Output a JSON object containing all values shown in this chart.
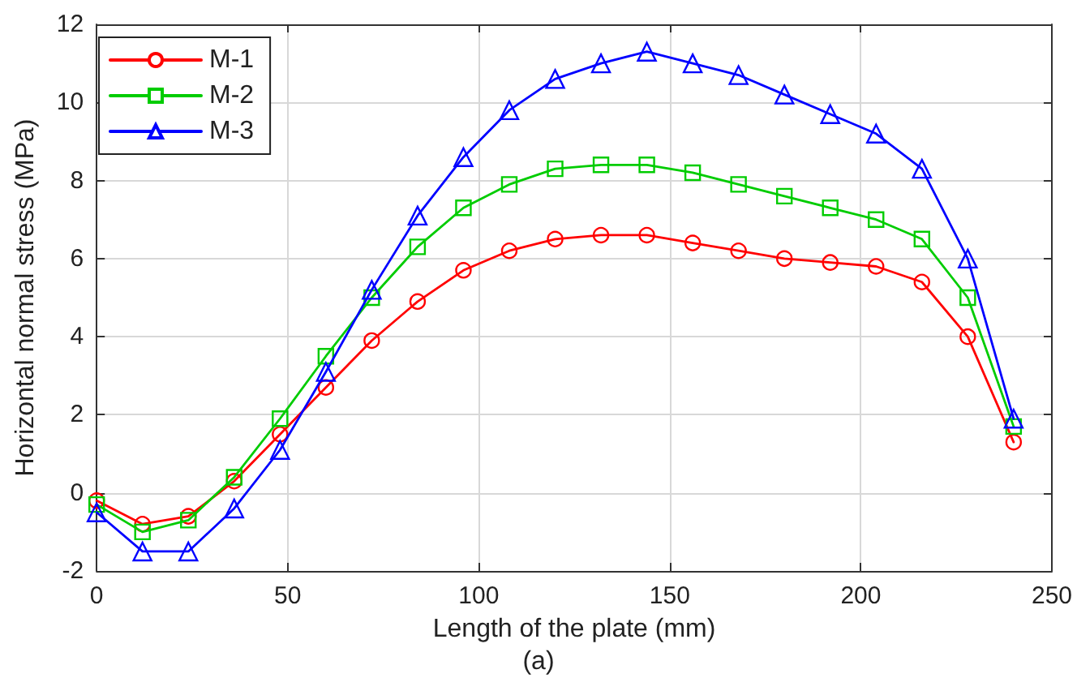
{
  "chart_data": {
    "type": "line",
    "xlabel": "Length of the plate (mm)",
    "ylabel": "Horizontal normal stress (MPa)",
    "x": [
      0,
      12,
      24,
      36,
      48,
      60,
      72,
      84,
      96,
      108,
      120,
      132,
      144,
      156,
      168,
      180,
      192,
      204,
      216,
      228,
      240
    ],
    "series": [
      {
        "name": "M-1",
        "color": "#ff0000",
        "marker": "circle",
        "values": [
          -0.2,
          -0.8,
          -0.6,
          0.3,
          1.5,
          2.7,
          3.9,
          4.9,
          5.7,
          6.2,
          6.5,
          6.6,
          6.6,
          6.4,
          6.2,
          6.0,
          5.9,
          5.8,
          5.4,
          4.0,
          1.3
        ]
      },
      {
        "name": "M-2",
        "color": "#00cc00",
        "marker": "square",
        "values": [
          -0.3,
          -1.0,
          -0.7,
          0.4,
          1.9,
          3.5,
          5.0,
          6.3,
          7.3,
          7.9,
          8.3,
          8.4,
          8.4,
          8.2,
          7.9,
          7.6,
          7.3,
          7.0,
          6.5,
          5.0,
          1.7
        ]
      },
      {
        "name": "M-3",
        "color": "#0000ff",
        "marker": "triangle",
        "values": [
          -0.5,
          -1.5,
          -1.5,
          -0.4,
          1.1,
          3.1,
          5.2,
          7.1,
          8.6,
          9.8,
          10.6,
          11.0,
          11.3,
          11.0,
          10.7,
          10.2,
          9.7,
          9.2,
          8.3,
          6.0,
          1.9
        ]
      }
    ],
    "xlim": [
      0,
      250
    ],
    "xticks": [
      0,
      50,
      100,
      150,
      200,
      250
    ],
    "ylim": [
      -2,
      12
    ],
    "yticks": [
      -2,
      0,
      2,
      4,
      6,
      8,
      10,
      12
    ],
    "grid": true,
    "legend": "top left",
    "line_style": "solid",
    "annotations": [
      "(a)"
    ]
  }
}
